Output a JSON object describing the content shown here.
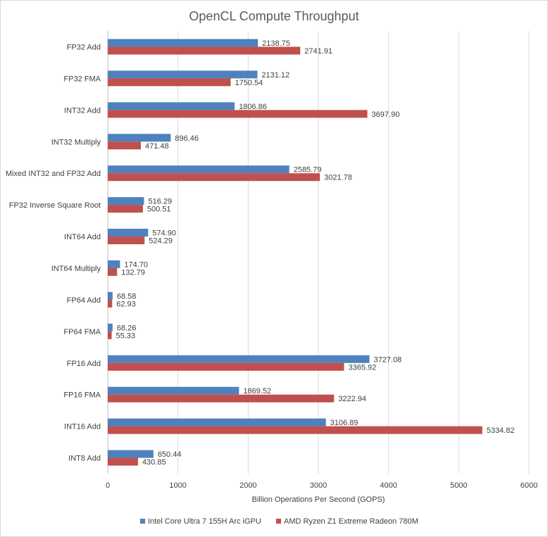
{
  "chart_data": {
    "type": "bar",
    "orientation": "horizontal",
    "title": "OpenCL Compute Throughput",
    "xlabel": "Billion Operations Per Second (GOPS)",
    "ylabel": "",
    "xlim": [
      0,
      6000
    ],
    "xticks": [
      0,
      1000,
      2000,
      3000,
      4000,
      5000,
      6000
    ],
    "grid": true,
    "legend_position": "bottom",
    "categories": [
      "FP32 Add",
      "FP32 FMA",
      "INT32 Add",
      "INT32 Multiply",
      "Mixed INT32 and FP32 Add",
      "FP32 Inverse Square Root",
      "INT64 Add",
      "INT64 Multiply",
      "FP64 Add",
      "FP64 FMA",
      "FP16 Add",
      "FP16 FMA",
      "INT16 Add",
      "INT8 Add"
    ],
    "series": [
      {
        "name": "Intel Core Ultra 7 155H Arc iGPU",
        "color": "#4f81bd",
        "values": [
          2138.75,
          2131.12,
          1806.86,
          896.46,
          2585.79,
          516.29,
          574.9,
          174.7,
          68.58,
          68.26,
          3727.08,
          1869.52,
          3106.89,
          650.44
        ],
        "labels": [
          "2138.75",
          "2131.12",
          "1806.86",
          "896.46",
          "2585.79",
          "516.29",
          "574.90",
          "174.70",
          "68.58",
          "68.26",
          "3727.08",
          "1869.52",
          "3106.89",
          "650.44"
        ]
      },
      {
        "name": "AMD Ryzen Z1 Extreme Radeon 780M",
        "color": "#c0504d",
        "values": [
          2741.91,
          1750.54,
          3697.9,
          471.48,
          3021.78,
          500.51,
          524.29,
          132.79,
          62.93,
          55.33,
          3365.92,
          3222.94,
          5334.82,
          430.85
        ],
        "labels": [
          "2741.91",
          "1750.54",
          "3697.90",
          "471.48",
          "3021.78",
          "500.51",
          "524.29",
          "132.79",
          "62.93",
          "55.33",
          "3365.92",
          "3222.94",
          "5334.82",
          "430.85"
        ]
      }
    ]
  }
}
